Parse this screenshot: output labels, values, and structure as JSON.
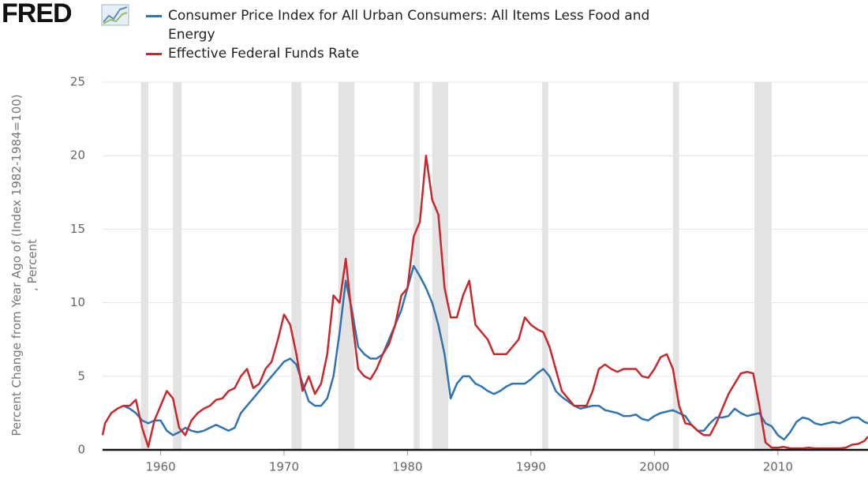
{
  "logo": "FRED",
  "chart_data": {
    "type": "line",
    "y_label": "Percent Change from Year Ago of (Index 1982-1984=100) , Percent",
    "xlim": [
      1955.3,
      2017.3
    ],
    "xticks": [
      1960,
      1970,
      1980,
      1990,
      2000,
      2010
    ],
    "ylim": [
      0,
      25
    ],
    "yticks": [
      0,
      5,
      10,
      15,
      20,
      25
    ],
    "grid": true,
    "recessions": [
      [
        1958.4,
        1959.0
      ],
      [
        1961.0,
        1961.7
      ],
      [
        1970.6,
        1971.4
      ],
      [
        1974.4,
        1975.7
      ],
      [
        1980.5,
        1981.0
      ],
      [
        1982.0,
        1983.3
      ],
      [
        1990.9,
        1991.4
      ],
      [
        2001.5,
        2002.0
      ],
      [
        2008.1,
        2009.5
      ]
    ],
    "x": [
      1955.3,
      1955.5,
      1956,
      1956.5,
      1957,
      1957.5,
      1958,
      1958.5,
      1959,
      1959.5,
      1960,
      1960.5,
      1961,
      1961.5,
      1962,
      1962.5,
      1963,
      1963.5,
      1964,
      1964.5,
      1965,
      1965.5,
      1966,
      1966.5,
      1967,
      1967.5,
      1968,
      1968.5,
      1969,
      1969.5,
      1970,
      1970.5,
      1971,
      1971.5,
      1972,
      1972.5,
      1973,
      1973.5,
      1974,
      1974.5,
      1975,
      1975.5,
      1976,
      1976.5,
      1977,
      1977.5,
      1978,
      1978.5,
      1979,
      1979.5,
      1980,
      1980.5,
      1981,
      1981.5,
      1982,
      1982.5,
      1983,
      1983.5,
      1984,
      1984.5,
      1985,
      1985.5,
      1986,
      1986.5,
      1987,
      1987.5,
      1988,
      1988.5,
      1989,
      1989.5,
      1990,
      1990.5,
      1991,
      1991.5,
      1992,
      1992.5,
      1993,
      1993.5,
      1994,
      1994.5,
      1995,
      1995.5,
      1996,
      1996.5,
      1997,
      1997.5,
      1998,
      1998.5,
      1999,
      1999.5,
      2000,
      2000.5,
      2001,
      2001.5,
      2002,
      2002.5,
      2003,
      2003.5,
      2004,
      2004.5,
      2005,
      2005.5,
      2006,
      2006.5,
      2007,
      2007.5,
      2008,
      2008.5,
      2009,
      2009.5,
      2010,
      2010.5,
      2011,
      2011.5,
      2012,
      2012.5,
      2013,
      2013.5,
      2014,
      2014.5,
      2015,
      2015.5,
      2016,
      2016.5,
      2017,
      2017.3
    ],
    "series": [
      {
        "name": "Consumer Price Index for All Urban Consumers: All Items Less Food and Energy",
        "color": "#2f74b0",
        "values": [
          null,
          null,
          null,
          null,
          3.0,
          2.8,
          2.5,
          2.0,
          1.8,
          2.0,
          2.0,
          1.3,
          1.0,
          1.2,
          1.5,
          1.3,
          1.2,
          1.3,
          1.5,
          1.7,
          1.5,
          1.3,
          1.5,
          2.5,
          3.0,
          3.5,
          4.0,
          4.5,
          5.0,
          5.5,
          6.0,
          6.2,
          5.8,
          4.5,
          3.3,
          3.0,
          3.0,
          3.5,
          5.0,
          8.0,
          11.5,
          9.5,
          7.0,
          6.5,
          6.2,
          6.2,
          6.5,
          7.5,
          8.5,
          9.5,
          11.0,
          12.5,
          11.8,
          11.0,
          10.0,
          8.5,
          6.5,
          3.5,
          4.5,
          5.0,
          5.0,
          4.5,
          4.3,
          4.0,
          3.8,
          4.0,
          4.3,
          4.5,
          4.5,
          4.5,
          4.8,
          5.2,
          5.5,
          5.0,
          4.0,
          3.6,
          3.3,
          3.0,
          2.8,
          2.9,
          3.0,
          3.0,
          2.7,
          2.6,
          2.5,
          2.3,
          2.3,
          2.4,
          2.1,
          2.0,
          2.3,
          2.5,
          2.6,
          2.7,
          2.5,
          2.3,
          1.7,
          1.3,
          1.3,
          1.8,
          2.2,
          2.2,
          2.3,
          2.8,
          2.5,
          2.3,
          2.4,
          2.5,
          1.8,
          1.6,
          1.0,
          0.7,
          1.2,
          1.9,
          2.2,
          2.1,
          1.8,
          1.7,
          1.8,
          1.9,
          1.8,
          2.0,
          2.2,
          2.2,
          1.9,
          1.8
        ]
      },
      {
        "name": "Effective Federal Funds Rate",
        "color": "#c8282c",
        "values": [
          1.0,
          1.8,
          2.5,
          2.8,
          3.0,
          3.0,
          3.4,
          1.5,
          0.2,
          2.0,
          3.0,
          4.0,
          3.5,
          1.5,
          1.0,
          2.0,
          2.5,
          2.8,
          3.0,
          3.4,
          3.5,
          4.0,
          4.2,
          5.0,
          5.5,
          4.2,
          4.5,
          5.5,
          6.0,
          7.5,
          9.2,
          8.5,
          6.5,
          4.0,
          5.0,
          3.8,
          4.5,
          6.5,
          10.5,
          10.0,
          13.0,
          9.0,
          5.5,
          5.0,
          4.8,
          5.5,
          6.5,
          7.2,
          8.5,
          10.5,
          11.0,
          14.5,
          15.5,
          20,
          17,
          16,
          11,
          9,
          9,
          10.5,
          11.5,
          8.5,
          8,
          7.5,
          6.5,
          6.5,
          6.5,
          7,
          7.5,
          9,
          8.5,
          8.2,
          8,
          7,
          5.5,
          4,
          3.5,
          3,
          3,
          3,
          4,
          5.5,
          5.8,
          5.5,
          5.3,
          5.5,
          5.5,
          5.5,
          5.0,
          4.9,
          5.5,
          6.3,
          6.5,
          5.5,
          3.0,
          1.8,
          1.7,
          1.3,
          1.0,
          1.0,
          1.8,
          2.8,
          3.8,
          4.5,
          5.2,
          5.3,
          5.2,
          3.0,
          0.5,
          0.15,
          0.15,
          0.2,
          0.1,
          0.1,
          0.1,
          0.15,
          0.1,
          0.1,
          0.1,
          0.1,
          0.1,
          0.15,
          0.35,
          0.4,
          0.6,
          0.9
        ]
      }
    ]
  }
}
